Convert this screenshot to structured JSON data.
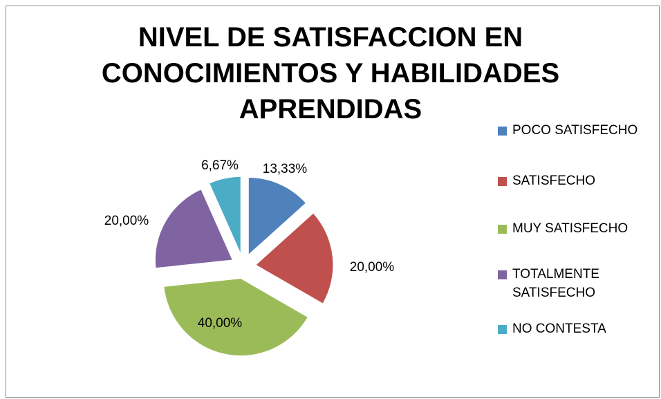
{
  "chart_data": {
    "type": "pie",
    "title": [
      "NIVEL DE SATISFACCION EN",
      "CONOCIMIENTOS Y HABILIDADES",
      "APRENDIDAS"
    ],
    "categories": [
      "POCO SATISFECHO",
      "SATISFECHO",
      "MUY SATISFECHO",
      "TOTALMENTE SATISFECHO",
      "NO CONTESTA"
    ],
    "values": [
      13.33,
      20,
      40,
      20,
      6.67
    ],
    "value_labels": [
      "13,33%",
      "20,00%",
      "40,00%",
      "20,00%",
      "6,67%"
    ],
    "colors": [
      "#4f81bd",
      "#c0504d",
      "#9bbb59",
      "#8064a2",
      "#4bacc6"
    ],
    "legend": "right"
  }
}
